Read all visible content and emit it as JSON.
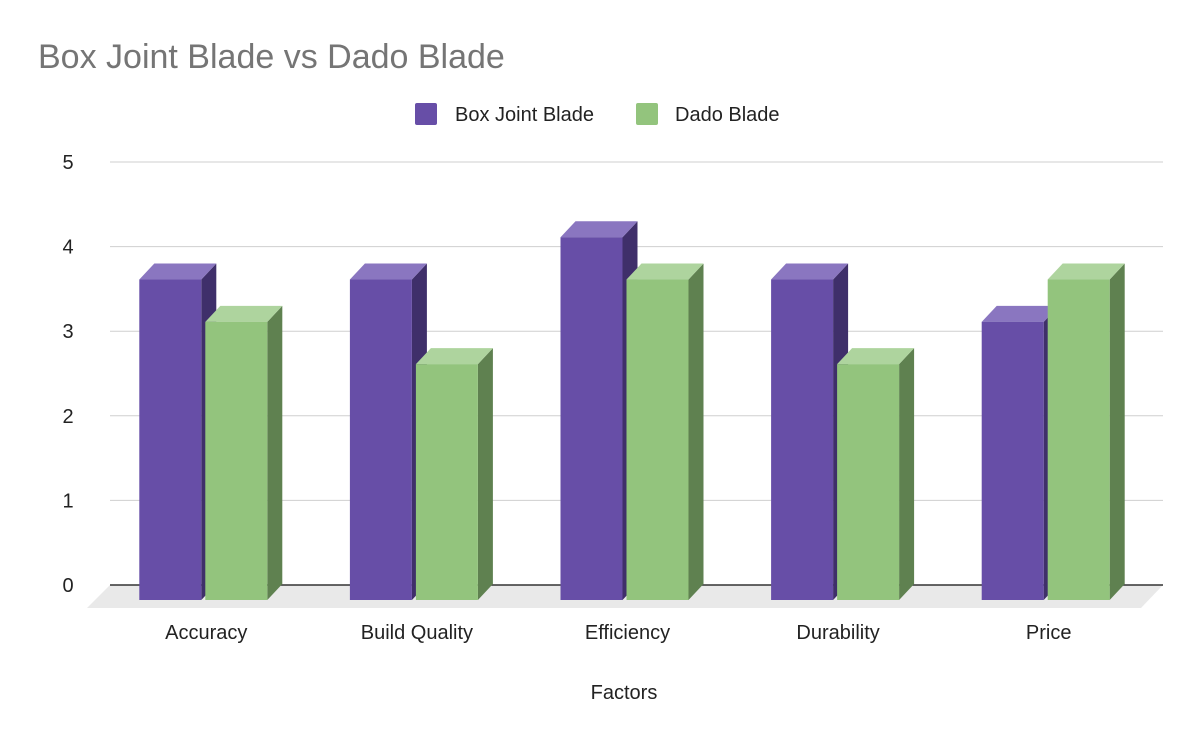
{
  "chart_data": {
    "type": "bar",
    "title": "Box Joint Blade vs Dado Blade",
    "xlabel": "Factors",
    "ylabel": "",
    "categories": [
      "Accuracy",
      "Build Quality",
      "Efficiency",
      "Durability",
      "Price"
    ],
    "series": [
      {
        "name": "Box Joint Blade",
        "values": [
          3.8,
          3.8,
          4.3,
          3.8,
          3.3
        ],
        "color": "#674ea7",
        "side_color": "#3f2f6a",
        "top_color": "#8a76c0"
      },
      {
        "name": "Dado Blade",
        "values": [
          3.3,
          2.8,
          3.8,
          2.8,
          3.8
        ],
        "color": "#93c47d",
        "side_color": "#5f8150",
        "top_color": "#aed49e"
      }
    ],
    "ylim": [
      0,
      5
    ],
    "yticks": [
      "0",
      "1",
      "2",
      "3",
      "4",
      "5"
    ],
    "grid": true,
    "legend_position": "top-center",
    "style": "3d-column"
  }
}
